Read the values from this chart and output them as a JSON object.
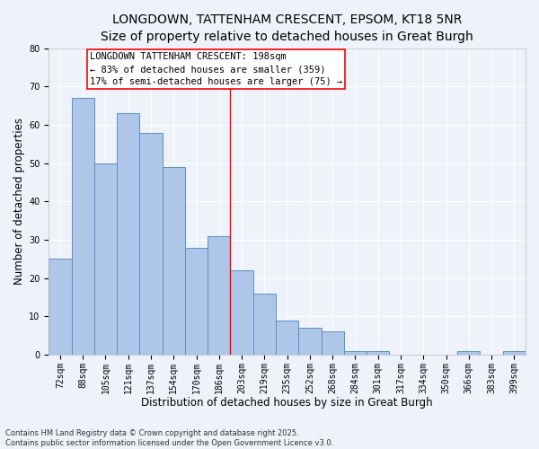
{
  "title1": "LONGDOWN, TATTENHAM CRESCENT, EPSOM, KT18 5NR",
  "title2": "Size of property relative to detached houses in Great Burgh",
  "xlabel": "Distribution of detached houses by size in Great Burgh",
  "ylabel": "Number of detached properties",
  "categories": [
    "72sqm",
    "88sqm",
    "105sqm",
    "121sqm",
    "137sqm",
    "154sqm",
    "170sqm",
    "186sqm",
    "203sqm",
    "219sqm",
    "235sqm",
    "252sqm",
    "268sqm",
    "284sqm",
    "301sqm",
    "317sqm",
    "334sqm",
    "350sqm",
    "366sqm",
    "383sqm",
    "399sqm"
  ],
  "values": [
    25,
    67,
    50,
    63,
    58,
    49,
    28,
    31,
    22,
    16,
    9,
    7,
    6,
    1,
    1,
    0,
    0,
    0,
    1,
    0,
    1
  ],
  "bar_color": "#aec6e8",
  "bar_edge_color": "#5b8fc9",
  "highlight_index": 7,
  "annotation_title": "LONGDOWN TATTENHAM CRESCENT: 198sqm",
  "annotation_line2": "← 83% of detached houses are smaller (359)",
  "annotation_line3": "17% of semi-detached houses are larger (75) →",
  "footer": "Contains HM Land Registry data © Crown copyright and database right 2025.\nContains public sector information licensed under the Open Government Licence v3.0.",
  "ylim": [
    0,
    80
  ],
  "yticks": [
    0,
    10,
    20,
    30,
    40,
    50,
    60,
    70,
    80
  ],
  "background_color": "#edf2fb",
  "grid_color": "#ffffff",
  "title_fontsize": 10,
  "subtitle_fontsize": 9,
  "axis_label_fontsize": 8.5,
  "tick_fontsize": 7,
  "annotation_fontsize": 7.5,
  "footer_fontsize": 6
}
